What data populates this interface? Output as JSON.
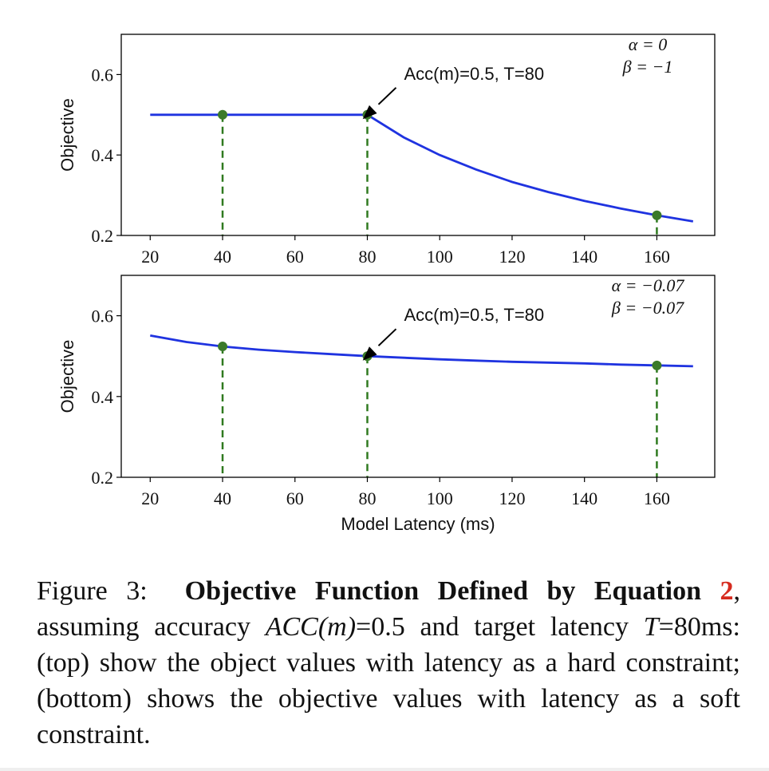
{
  "chart_data": [
    {
      "type": "line",
      "panel": "top",
      "ylabel": "Objective",
      "xlabel": "",
      "xlim": [
        12,
        176
      ],
      "ylim": [
        0.2,
        0.7
      ],
      "xticks": [
        20,
        40,
        60,
        80,
        100,
        120,
        140,
        160
      ],
      "yticks": [
        0.2,
        0.4,
        0.6
      ],
      "params": [
        "α = 0",
        "β = −1"
      ],
      "annotation": {
        "text": "Acc(m)=0.5, T=80",
        "x": 80,
        "y": 0.5
      },
      "series": [
        {
          "color": "#1f33e0",
          "x": [
            20,
            30,
            40,
            50,
            60,
            70,
            80,
            90,
            100,
            110,
            120,
            130,
            140,
            150,
            160,
            170
          ],
          "values": [
            0.5,
            0.5,
            0.5,
            0.5,
            0.5,
            0.5,
            0.5,
            0.444,
            0.4,
            0.364,
            0.333,
            0.308,
            0.286,
            0.267,
            0.25,
            0.235
          ]
        }
      ],
      "markers": [
        {
          "x": 40,
          "y": 0.5
        },
        {
          "x": 80,
          "y": 0.5
        },
        {
          "x": 160,
          "y": 0.25
        }
      ]
    },
    {
      "type": "line",
      "panel": "bottom",
      "ylabel": "Objective",
      "xlabel": "Model Latency (ms)",
      "xlim": [
        12,
        176
      ],
      "ylim": [
        0.2,
        0.7
      ],
      "xticks": [
        20,
        40,
        60,
        80,
        100,
        120,
        140,
        160
      ],
      "yticks": [
        0.2,
        0.4,
        0.6
      ],
      "params": [
        "α = −0.07",
        "β = −0.07"
      ],
      "annotation": {
        "text": "Acc(m)=0.5, T=80",
        "x": 80,
        "y": 0.5
      },
      "series": [
        {
          "color": "#1f33e0",
          "x": [
            20,
            30,
            40,
            50,
            60,
            70,
            80,
            90,
            100,
            110,
            120,
            130,
            140,
            150,
            160,
            170
          ],
          "values": [
            0.551,
            0.535,
            0.524,
            0.516,
            0.51,
            0.505,
            0.5,
            0.496,
            0.492,
            0.489,
            0.486,
            0.484,
            0.482,
            0.479,
            0.477,
            0.475
          ]
        }
      ],
      "markers": [
        {
          "x": 40,
          "y": 0.524
        },
        {
          "x": 80,
          "y": 0.5
        },
        {
          "x": 160,
          "y": 0.477
        }
      ]
    }
  ],
  "colors": {
    "line": "#1f33e0",
    "marker": "#3a7a2a",
    "dashed": "#2f7a1f",
    "ref": "#d62b1f"
  },
  "caption": {
    "label": "Figure 3:",
    "title": "Objective Function Defined by Equation",
    "ref_number": "2",
    "text_1": ", assuming accuracy ",
    "math_acc": "ACC(m)",
    "text_2": "=0.5 and target latency ",
    "math_t": "T",
    "text_3": "=80ms: (top) show the object values with latency as a hard constraint; (bottom) shows the objective values with latency as a soft constraint."
  }
}
